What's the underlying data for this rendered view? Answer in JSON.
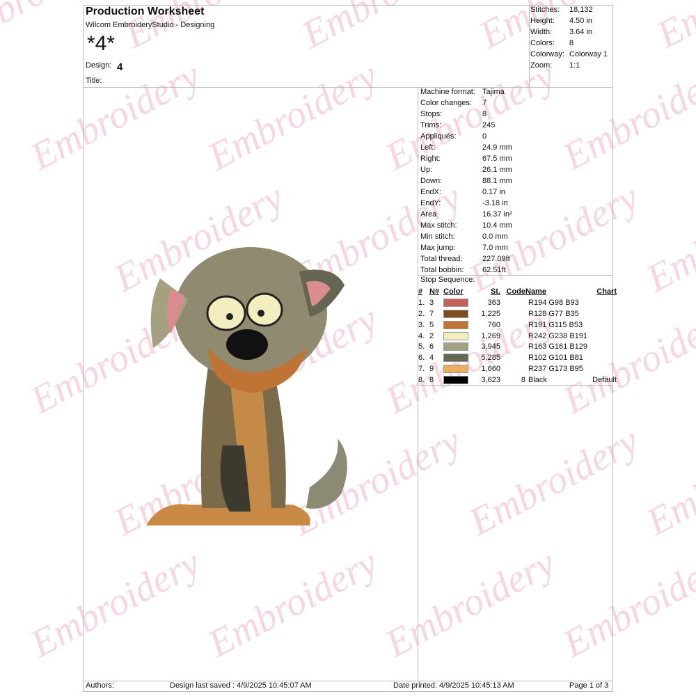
{
  "watermark": "Embroidery ever",
  "header": {
    "title": "Production Worksheet",
    "subtitle": "Wilcom EmbroideryStudio - Designing",
    "design_name": "*4*",
    "design_label": "Design:",
    "design_value": "4",
    "title_label": "Title:"
  },
  "summary": [
    {
      "k": "Stitches:",
      "v": "18,132"
    },
    {
      "k": "Height:",
      "v": "4.50 in"
    },
    {
      "k": "Width:",
      "v": "3.64 in"
    },
    {
      "k": "Colors:",
      "v": "8"
    },
    {
      "k": "Colorway:",
      "v": "Colorway 1"
    },
    {
      "k": "Zoom:",
      "v": "1:1"
    }
  ],
  "details": [
    {
      "k": "Machine format:",
      "v": "Tajima"
    },
    {
      "k": "Color changes:",
      "v": "7"
    },
    {
      "k": "Stops:",
      "v": "8"
    },
    {
      "k": "Trims:",
      "v": "245"
    },
    {
      "k": "Appliqués:",
      "v": "0"
    },
    {
      "k": "Left:",
      "v": "24.9 mm"
    },
    {
      "k": "Right:",
      "v": "67.5 mm"
    },
    {
      "k": "Up:",
      "v": "26.1 mm"
    },
    {
      "k": "Down:",
      "v": "88.1 mm"
    },
    {
      "k": "EndX:",
      "v": "0.17 in"
    },
    {
      "k": "EndY:",
      "v": "-3.18 in"
    },
    {
      "k": "Area",
      "v": " 16.37 in²"
    },
    {
      "k": "Max stitch:",
      "v": "10.4 mm"
    },
    {
      "k": "Min stitch:",
      "v": "0.0 mm"
    },
    {
      "k": "Max jump:",
      "v": "7.0 mm"
    },
    {
      "k": "Total thread:",
      "v": "227.09ft"
    },
    {
      "k": "Total bobbin:",
      "v": "62.51ft"
    }
  ],
  "stop_sequence": {
    "title": "Stop Sequence:",
    "columns": [
      "#",
      "N#",
      "Color",
      "St.",
      "Code",
      "Name",
      "Chart"
    ],
    "rows": [
      {
        "i": "1.",
        "n": "3",
        "color": "#c2625d",
        "st": "363",
        "code": "",
        "name": "R194 G98 B93",
        "chart": ""
      },
      {
        "i": "2.",
        "n": "7",
        "color": "#804d23",
        "st": "1,225",
        "code": "",
        "name": "R128 G77 B35",
        "chart": ""
      },
      {
        "i": "3.",
        "n": "5",
        "color": "#bf7335",
        "st": "760",
        "code": "",
        "name": "R191 G115 B53",
        "chart": ""
      },
      {
        "i": "4.",
        "n": "2",
        "color": "#f2eebf",
        "st": "1,269",
        "code": "",
        "name": "R242 G238 B191",
        "chart": ""
      },
      {
        "i": "5.",
        "n": "6",
        "color": "#a3a181",
        "st": "3,945",
        "code": "",
        "name": "R163 G161 B129",
        "chart": ""
      },
      {
        "i": "6.",
        "n": "4",
        "color": "#666551",
        "st": "5,285",
        "code": "",
        "name": "R102 G101 B81",
        "chart": ""
      },
      {
        "i": "7.",
        "n": "9",
        "color": "#edad5f",
        "st": "1,660",
        "code": "",
        "name": "R237 G173 B95",
        "chart": ""
      },
      {
        "i": "8.",
        "n": "8",
        "color": "#000000",
        "st": "3,623",
        "code": "8",
        "name": "Black",
        "chart": "Default"
      }
    ]
  },
  "footer": {
    "authors": "Authors:",
    "saved": "Design last saved : 4/9/2025 10:45:07 AM",
    "printed": "Date printed: 4/9/2025 10:45:13 AM",
    "page": "Page 1 of 3"
  }
}
